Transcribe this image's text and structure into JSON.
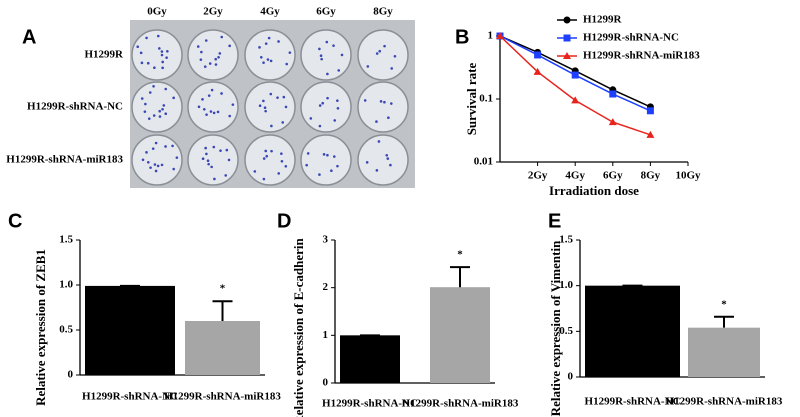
{
  "panel_a": {
    "panel_label": "A",
    "columns": [
      "0Gy",
      "2Gy",
      "4Gy",
      "6Gy",
      "8Gy"
    ],
    "rows": [
      "H1299R",
      "H1299R-shRNA-NC",
      "H1299R-shRNA-miR183"
    ]
  },
  "chart_data": [
    {
      "type": "line",
      "panel_label": "B",
      "y_label": "Survival rate",
      "x_label": "Irradiation dose",
      "x": [
        0,
        2,
        4,
        6,
        8
      ],
      "xlim": [
        0,
        10
      ],
      "xticks": [
        {
          "value": 2,
          "label": "2Gy"
        },
        {
          "value": 4,
          "label": "4Gy"
        },
        {
          "value": 6,
          "label": "6Gy"
        },
        {
          "value": 8,
          "label": "8Gy"
        },
        {
          "value": 10,
          "label": "10Gy"
        }
      ],
      "ylim": [
        0.01,
        1
      ],
      "yticks": [
        0.01,
        0.1,
        1
      ],
      "log_y": true,
      "legend": "top-right",
      "series": [
        {
          "name": "H1299R",
          "color": "#000000",
          "marker": "circle",
          "values": [
            1,
            0.55,
            0.28,
            0.14,
            0.075
          ]
        },
        {
          "name": "H1299R-shRNA-NC",
          "color": "#1f3fff",
          "marker": "square",
          "values": [
            1,
            0.5,
            0.24,
            0.12,
            0.065
          ]
        },
        {
          "name": "H1299R-shRNA-miR183",
          "color": "#e8231c",
          "marker": "triangle",
          "values": [
            1,
            0.27,
            0.095,
            0.043,
            0.027
          ]
        }
      ]
    },
    {
      "type": "bar",
      "panel_label": "C",
      "y_label": "Relative expression of ZEB1",
      "categories": [
        "H1299R-shRNA-NC",
        "H1299R-shRNA-miR183"
      ],
      "values": [
        0.99,
        0.6
      ],
      "errors": [
        0,
        0.22
      ],
      "colors": [
        "#000000",
        "#a6a6a6"
      ],
      "annotation": "*",
      "ylim": [
        0,
        1.5
      ],
      "yticks": [
        0,
        0.5,
        {
          "value": 1,
          "label": "1.0"
        },
        1.5
      ]
    },
    {
      "type": "bar",
      "panel_label": "D",
      "y_label": "Relative expression of E-cadherin",
      "categories": [
        "H1299R-shRNA-NC",
        "H1299R-shRNA-miR183"
      ],
      "values": [
        1,
        2.01
      ],
      "errors": [
        0,
        0.42
      ],
      "colors": [
        "#000000",
        "#a6a6a6"
      ],
      "annotation": "*",
      "ylim": [
        0,
        3
      ],
      "yticks": [
        0,
        1,
        2,
        3
      ]
    },
    {
      "type": "bar",
      "panel_label": "E",
      "y_label": "Relative expression of Vimentin",
      "categories": [
        "H1299R-shRNA-NC",
        "H1299R-shRNA-miR183"
      ],
      "values": [
        1,
        0.54
      ],
      "errors": [
        0,
        0.12
      ],
      "colors": [
        "#000000",
        "#a6a6a6"
      ],
      "annotation": "*",
      "ylim": [
        0,
        1.5
      ],
      "yticks": [
        0,
        0.5,
        {
          "value": 1,
          "label": "1.0"
        },
        1.5
      ]
    }
  ]
}
